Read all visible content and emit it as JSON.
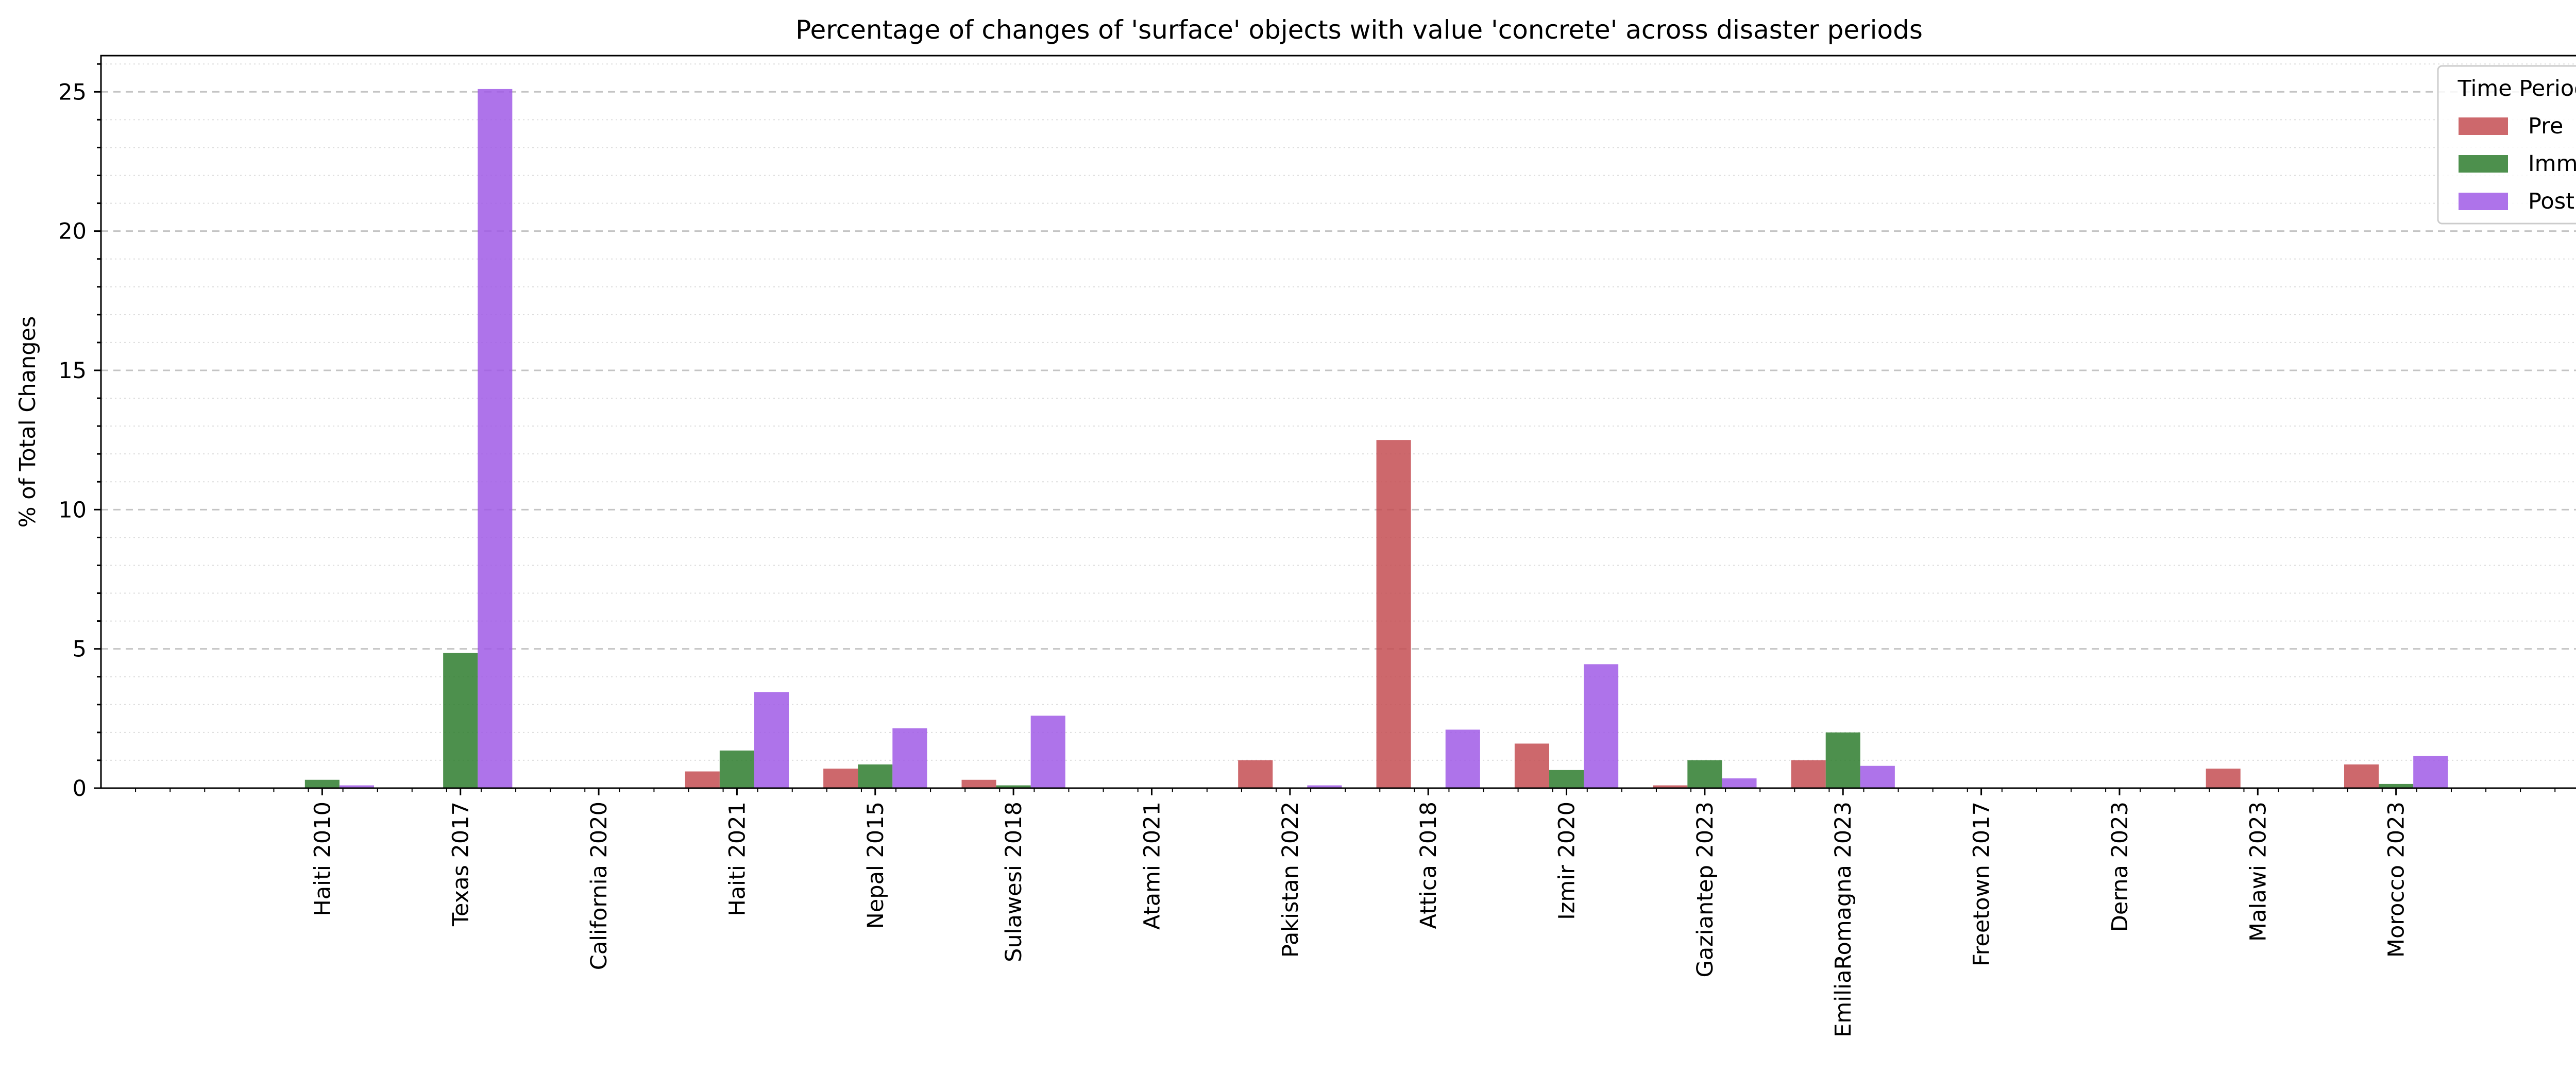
{
  "chart_data": {
    "type": "bar",
    "title": "Percentage of changes of 'surface' objects with value 'concrete' across disaster periods",
    "xlabel": "",
    "ylabel": "% of Total Changes",
    "ylim": [
      0,
      26.3
    ],
    "yticks": [
      0,
      5,
      10,
      15,
      20,
      25
    ],
    "grid": "major dashed, minor dotted (horizontal)",
    "legend": {
      "title": "Time Period",
      "position": "top-right"
    },
    "categories": [
      "Haiti 2010",
      "Texas 2017",
      "California 2020",
      "Haiti 2021",
      "Nepal 2015",
      "Sulawesi 2018",
      "Atami 2021",
      "Pakistan 2022",
      "Attica 2018",
      "Izmir 2020",
      "Gaziantep 2023",
      "EmiliaRomagna 2023",
      "Freetown 2017",
      "Derna 2023",
      "Malawi 2023",
      "Morocco 2023"
    ],
    "series": [
      {
        "name": "Pre",
        "color": "#c44e52",
        "values": [
          0,
          0,
          0,
          0.6,
          0.7,
          0.3,
          0,
          1.0,
          12.5,
          1.6,
          0.1,
          1.0,
          0,
          0,
          0.7,
          0.85
        ]
      },
      {
        "name": "Imm",
        "color": "#2e7d2e",
        "values": [
          0.3,
          4.85,
          0,
          1.35,
          0.85,
          0.1,
          0,
          0,
          0,
          0.65,
          1.0,
          2.0,
          0,
          0,
          0,
          0.15
        ]
      },
      {
        "name": "Post",
        "color": "#a05ae6",
        "values": [
          0.1,
          25.1,
          0,
          3.45,
          2.15,
          2.6,
          0,
          0.1,
          2.1,
          4.45,
          0.35,
          0.8,
          0,
          0,
          0,
          1.15
        ]
      }
    ]
  }
}
